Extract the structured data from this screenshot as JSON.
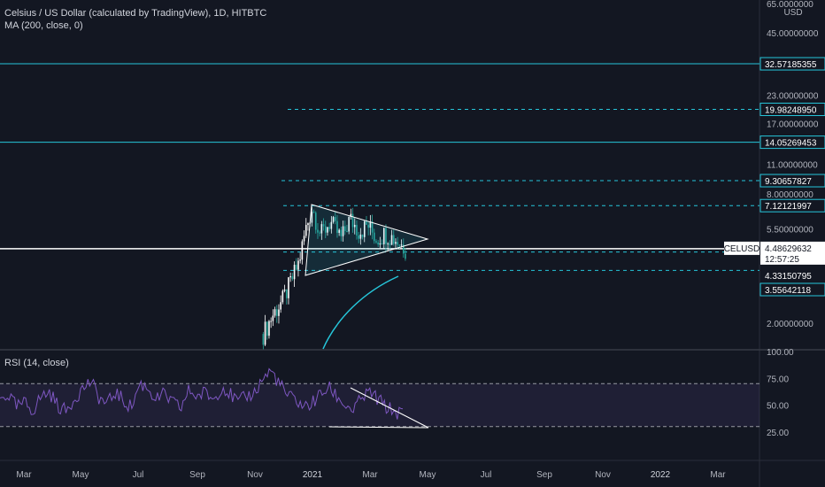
{
  "header": {
    "title": "Celsius / US Dollar (calculated by TradingView), 1D, HITBTC",
    "indicator": "MA (200, close, 0)"
  },
  "price_axis": {
    "currency": "USD",
    "tick_labels": [
      "65.0000000",
      "45.00000000",
      "23.00000000",
      "17.00000000",
      "11.00000000",
      "8.00000000",
      "5.50000000",
      "2.00000000"
    ]
  },
  "price_badges": [
    {
      "label": "32.57185355",
      "color": "#26c6da",
      "style": "boxed"
    },
    {
      "label": "19.98248950",
      "color": "#26c6da",
      "style": "boxed"
    },
    {
      "label": "14.05269453",
      "color": "#26c6da",
      "style": "boxed"
    },
    {
      "label": "9.30657827",
      "color": "#26c6da",
      "style": "boxed"
    },
    {
      "label": "7.12121997",
      "color": "#26c6da",
      "style": "boxed"
    },
    {
      "label": "4.33150795",
      "color": "#ffffff",
      "style": "plain"
    },
    {
      "label": "3.55642118",
      "color": "#26c6da",
      "style": "boxed"
    }
  ],
  "current_price": {
    "symbol": "CELUSD",
    "value": "4.48629632",
    "countdown": "12:57:25"
  },
  "rsi": {
    "title": "RSI (14, close)",
    "tick_labels": [
      "100.00",
      "75.00",
      "50.00",
      "25.00"
    ]
  },
  "time_axis": {
    "labels": [
      "Mar",
      "May",
      "Jul",
      "Sep",
      "Nov",
      "2021",
      "Mar",
      "May",
      "Jul",
      "Sep",
      "Nov",
      "2022",
      "Mar"
    ]
  },
  "colors": {
    "background": "#131722",
    "accent": "#26c6da",
    "candle_up": "#ffffff",
    "candle_down": "#26a69a",
    "rsi_line": "#7e57c2",
    "rsi_band": "rgba(126,87,194,0.12)"
  },
  "chart_data": {
    "type": "candlestick",
    "title": "Celsius / US Dollar (calculated by TradingView), 1D, HITBTC",
    "y_scale": "log",
    "horizontal_levels": [
      {
        "value": 32.57185355,
        "style": "solid"
      },
      {
        "value": 19.9824895,
        "style": "dashed"
      },
      {
        "value": 14.05269453,
        "style": "solid"
      },
      {
        "value": 9.30657827,
        "style": "dashed"
      },
      {
        "value": 7.12121997,
        "style": "dashed"
      },
      {
        "value": 4.48629632,
        "style": "solid"
      },
      {
        "value": 4.33150795,
        "style": "dashed"
      }
    ],
    "price_path": [
      {
        "t": "2020-11-10",
        "price": 1.8
      },
      {
        "t": "2020-11-20",
        "price": 2.2
      },
      {
        "t": "2020-12-01",
        "price": 2.6
      },
      {
        "t": "2020-12-10",
        "price": 3.2
      },
      {
        "t": "2020-12-18",
        "price": 3.9
      },
      {
        "t": "2020-12-25",
        "price": 5.5
      },
      {
        "t": "2021-01-01",
        "price": 7.0
      },
      {
        "t": "2021-01-10",
        "price": 5.2
      },
      {
        "t": "2021-01-20",
        "price": 6.0
      },
      {
        "t": "2021-02-01",
        "price": 5.0
      },
      {
        "t": "2021-02-10",
        "price": 6.2
      },
      {
        "t": "2021-02-20",
        "price": 5.4
      },
      {
        "t": "2021-03-01",
        "price": 5.8
      },
      {
        "t": "2021-03-10",
        "price": 5.0
      },
      {
        "t": "2021-03-20",
        "price": 5.3
      },
      {
        "t": "2021-04-01",
        "price": 4.9
      },
      {
        "t": "2021-04-10",
        "price": 4.49
      }
    ],
    "rsi": {
      "ylim": [
        0,
        100
      ],
      "levels": [
        70,
        30
      ],
      "values": [
        55,
        60,
        48,
        52,
        45,
        58,
        62,
        50,
        44,
        56,
        65,
        72,
        58,
        50,
        62,
        54,
        48,
        70,
        66,
        55,
        60,
        52,
        47,
        64,
        58,
        62,
        55,
        68,
        60,
        52,
        58,
        62,
        75,
        82,
        70,
        58,
        55,
        48,
        52,
        60,
        66,
        58,
        50,
        45,
        56,
        62,
        55,
        48,
        44,
        42
      ]
    }
  }
}
